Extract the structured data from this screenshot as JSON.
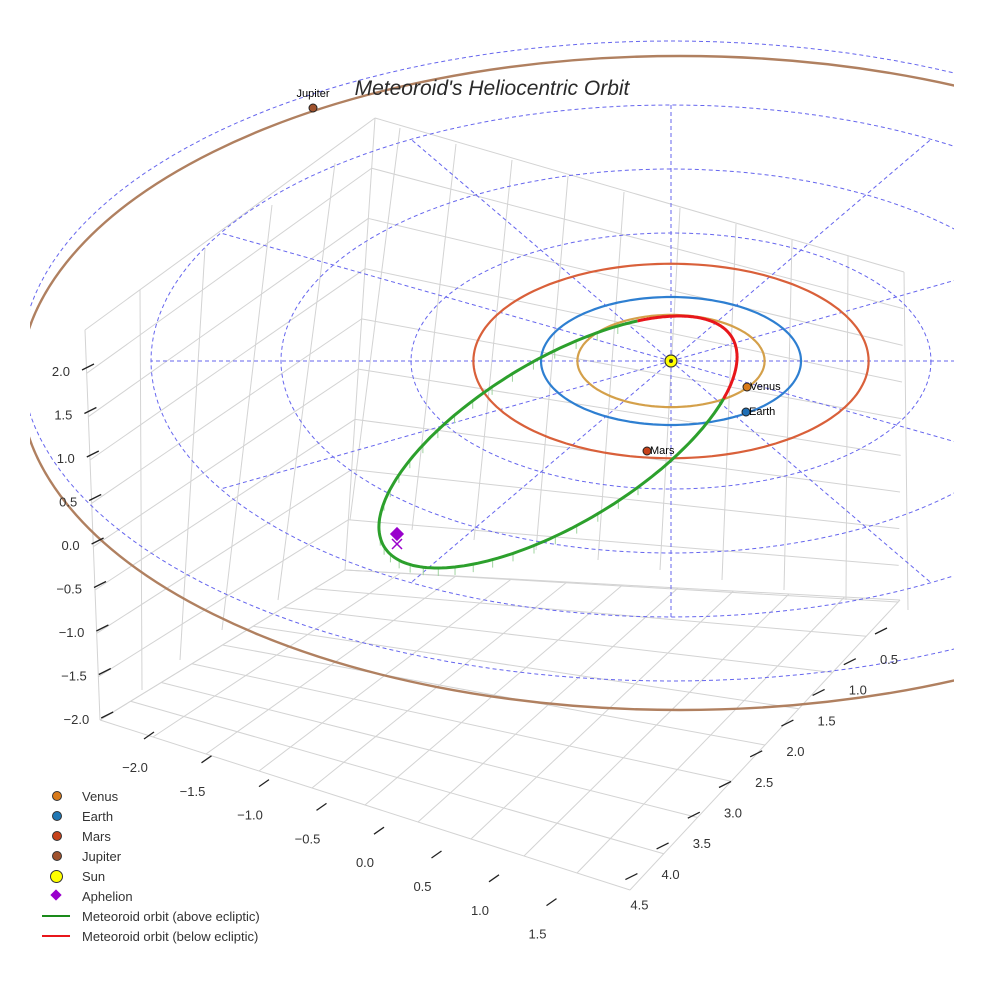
{
  "chart_data": {
    "type": "3d-line",
    "title": "Meteoroid's Heliocentric Orbit",
    "x_ticks": [
      "−2.0",
      "−1.5",
      "−1.0",
      "−0.5",
      "0.0",
      "0.5",
      "1.0",
      "1.5"
    ],
    "y_ticks": [
      "0.5",
      "1.0",
      "1.5",
      "2.0",
      "2.5",
      "3.0",
      "3.5",
      "4.0",
      "4.5"
    ],
    "z_ticks": [
      "2.0",
      "1.5",
      "1.0",
      "0.5",
      "0.0",
      "−0.5",
      "−1.0",
      "−1.5",
      "−2.0"
    ],
    "planets": [
      {
        "name": "Venus",
        "orbit_radius_au": 0.72,
        "orbit_color": "#d4a04a",
        "marker_color": "#d97a1a"
      },
      {
        "name": "Earth",
        "orbit_radius_au": 1.0,
        "orbit_color": "#2e7fd1",
        "marker_color": "#1f6fb5"
      },
      {
        "name": "Mars",
        "orbit_radius_au": 1.52,
        "orbit_color": "#d9603a",
        "marker_color": "#c7421a"
      },
      {
        "name": "Jupiter",
        "orbit_radius_au": 5.2,
        "orbit_color": "#b08060",
        "marker_color": "#a0522d"
      }
    ],
    "sun": {
      "name": "Sun",
      "color": "#ffff00"
    },
    "aphelion": {
      "name": "Aphelion",
      "color": "#9900cc"
    },
    "meteoroid_orbit": {
      "above_color": "#2ca02c",
      "below_color": "#e8161b"
    },
    "ecliptic_grid_rings_au": [
      1,
      2,
      3,
      4,
      5
    ]
  },
  "legend": [
    {
      "label": "Venus",
      "kind": "dot",
      "color": "#d97a1a"
    },
    {
      "label": "Earth",
      "kind": "dot",
      "color": "#1f77b4"
    },
    {
      "label": "Mars",
      "kind": "dot",
      "color": "#c7421a"
    },
    {
      "label": "Jupiter",
      "kind": "dot",
      "color": "#a0522d"
    },
    {
      "label": "Sun",
      "kind": "bigdot",
      "color": "#ffff00"
    },
    {
      "label": "Aphelion",
      "kind": "diamond",
      "color": "#9900cc"
    },
    {
      "label": "Meteoroid orbit (above ecliptic)",
      "kind": "line",
      "color": "#1a8a1a"
    },
    {
      "label": "Meteoroid orbit (below ecliptic)",
      "kind": "line",
      "color": "#e8161b"
    }
  ]
}
